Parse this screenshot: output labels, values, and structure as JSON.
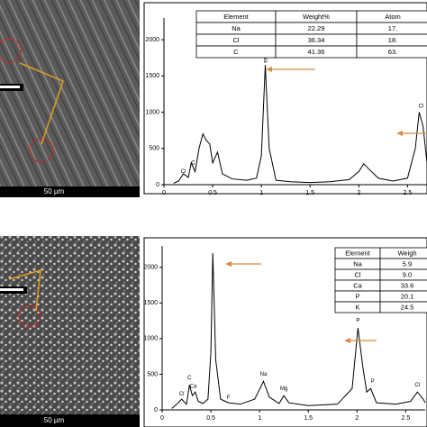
{
  "chart_data": [
    {
      "type": "line",
      "x": [
        0.1,
        0.15,
        0.2,
        0.25,
        0.28,
        0.32,
        0.36,
        0.4,
        0.43,
        0.47,
        0.5,
        0.55,
        0.6,
        0.7,
        0.85,
        0.95,
        1.0,
        1.04,
        1.08,
        1.15,
        1.3,
        1.5,
        1.7,
        1.9,
        2.0,
        2.05,
        2.1,
        2.2,
        2.35,
        2.5,
        2.58,
        2.62,
        2.66,
        2.7
      ],
      "series": [
        {
          "color": "#000000",
          "values": [
            20,
            50,
            150,
            100,
            300,
            180,
            500,
            700,
            620,
            560,
            300,
            450,
            150,
            80,
            60,
            90,
            400,
            1650,
            500,
            60,
            40,
            30,
            40,
            70,
            180,
            290,
            220,
            90,
            50,
            90,
            500,
            1000,
            800,
            300
          ]
        }
      ],
      "xlim": [
        0,
        2.7
      ],
      "xticks": [
        0,
        0.5,
        1,
        1.5,
        2,
        2.5
      ],
      "ylim": [
        0,
        2300
      ],
      "yticks": [
        0,
        500,
        1000,
        1500,
        2000
      ],
      "peak_labels": [
        "Cl",
        "C",
        "Na",
        "Cl"
      ],
      "image_scale": "50 µm",
      "table": {
        "header": [
          "Element",
          "Weight%",
          "Atom"
        ],
        "rows": [
          [
            "Na",
            "22.29",
            "17."
          ],
          [
            "Cl",
            "36.34",
            "18."
          ],
          [
            "C",
            "41.36",
            "63."
          ]
        ]
      }
    },
    {
      "type": "line",
      "x": [
        0.1,
        0.15,
        0.2,
        0.25,
        0.28,
        0.31,
        0.34,
        0.37,
        0.42,
        0.47,
        0.5,
        0.52,
        0.55,
        0.6,
        0.68,
        0.8,
        0.95,
        1.04,
        1.1,
        1.2,
        1.25,
        1.3,
        1.5,
        1.8,
        1.95,
        2.01,
        2.06,
        2.1,
        2.14,
        2.2,
        2.4,
        2.55,
        2.62,
        2.68,
        2.7
      ],
      "series": [
        {
          "color": "#000000",
          "values": [
            20,
            80,
            150,
            80,
            350,
            200,
            250,
            120,
            90,
            150,
            800,
            2200,
            700,
            150,
            100,
            80,
            150,
            400,
            180,
            90,
            200,
            100,
            60,
            80,
            300,
            1150,
            600,
            250,
            300,
            100,
            80,
            120,
            250,
            150,
            100
          ]
        }
      ],
      "xlim": [
        0,
        2.7
      ],
      "xticks": [
        0,
        0.5,
        1,
        1.5,
        2,
        2.5
      ],
      "ylim": [
        0,
        2300
      ],
      "yticks": [
        0,
        500,
        1000,
        1500,
        2000
      ],
      "peak_labels": [
        "Cl",
        "C",
        "Ca",
        "F",
        "Na",
        "Mg",
        "P",
        "P",
        "Cl"
      ],
      "image_scale": "50 µm",
      "table": {
        "header": [
          "Element",
          "Weigh"
        ],
        "rows": [
          [
            "Na",
            "5.9"
          ],
          [
            "Cl",
            "9.0"
          ],
          [
            "Ca",
            "33.6"
          ],
          [
            "P",
            "20.1"
          ],
          [
            "K",
            "24.5"
          ]
        ]
      }
    }
  ]
}
